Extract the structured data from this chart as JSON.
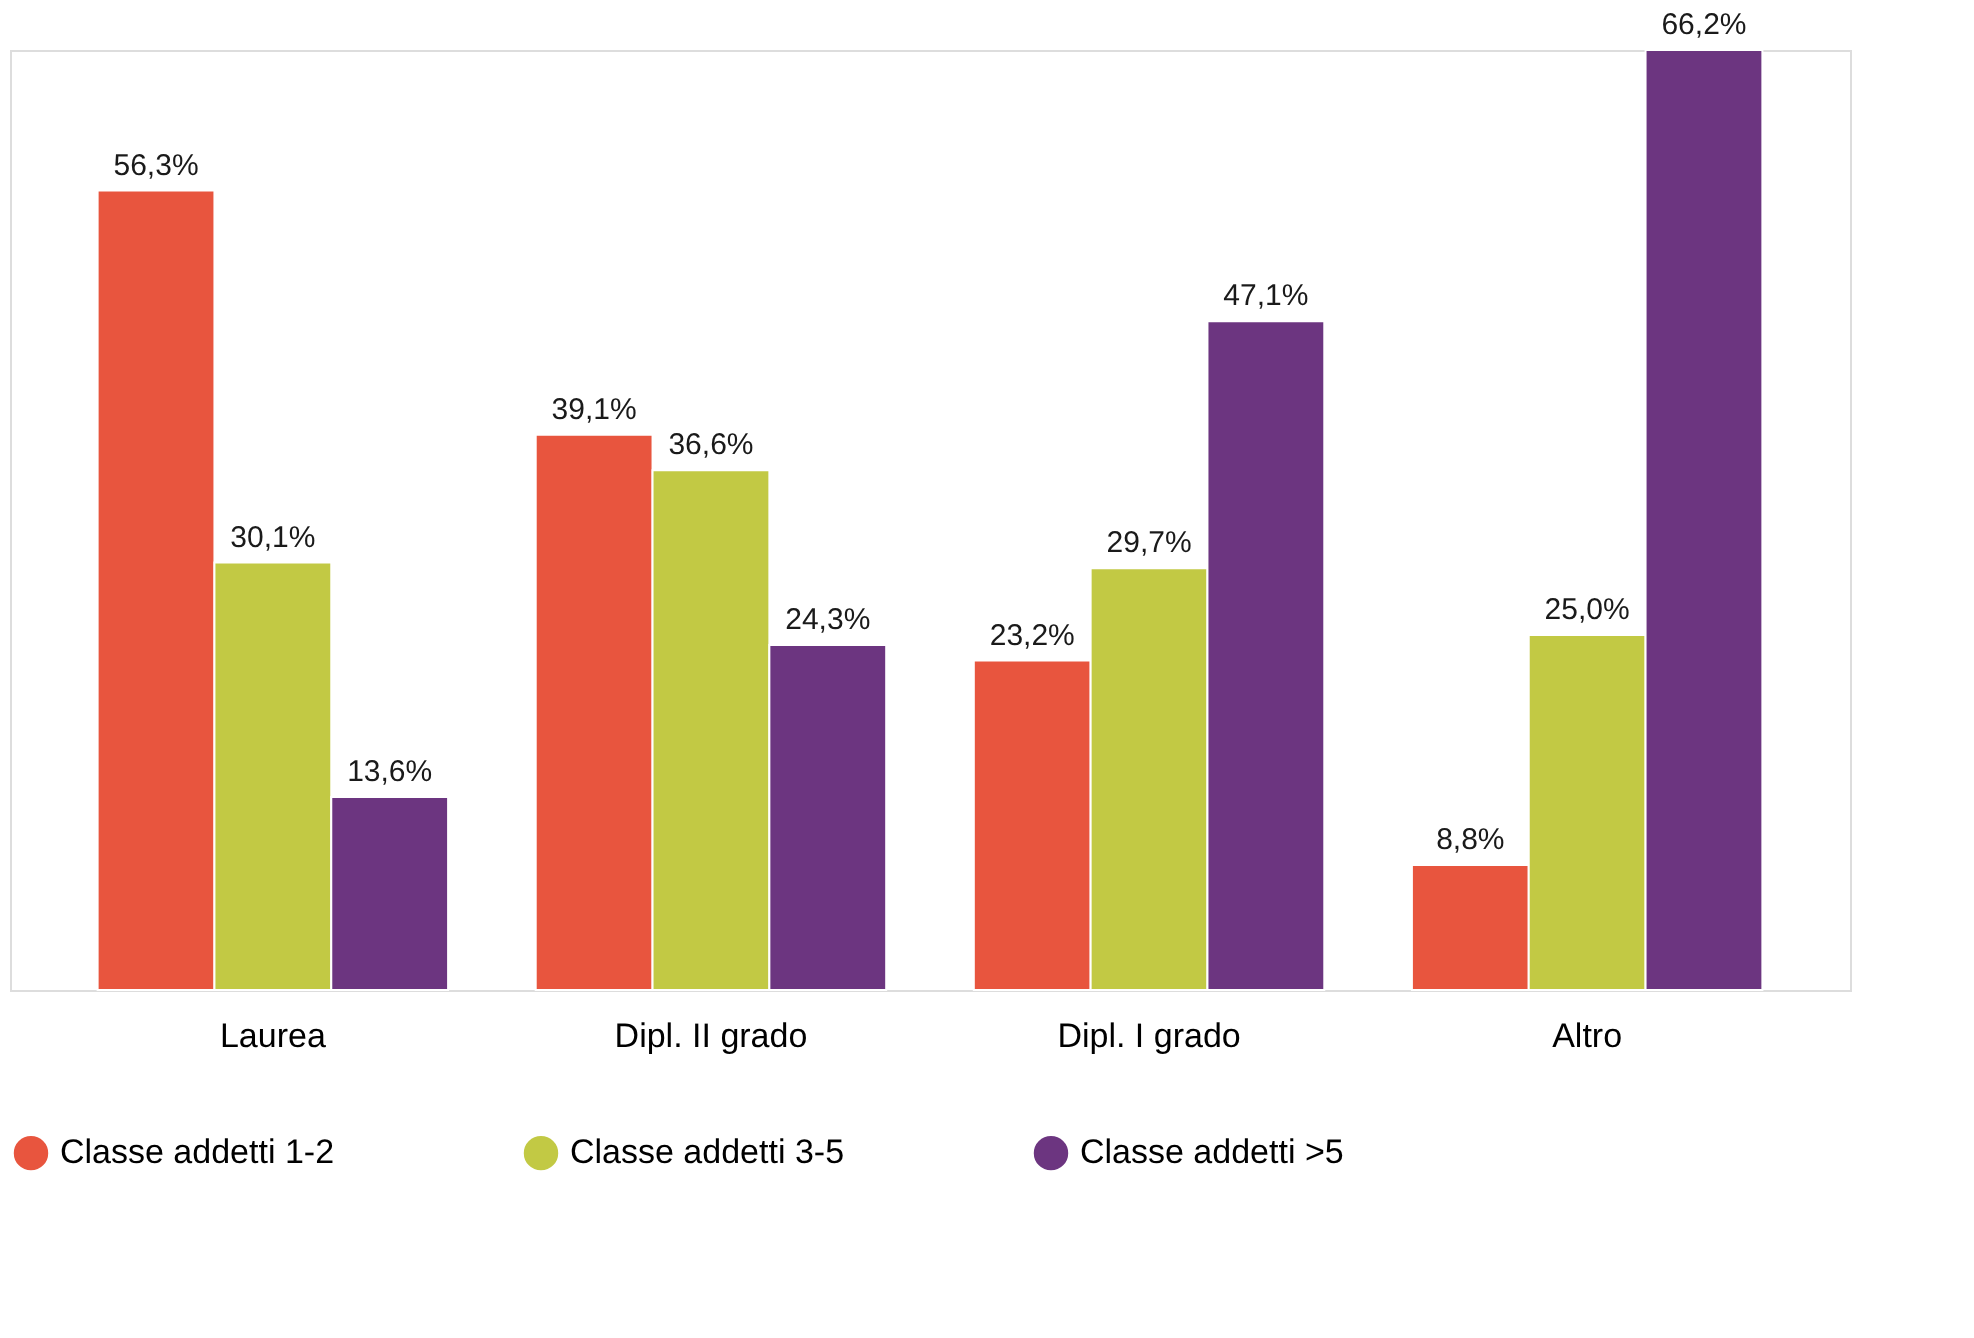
{
  "chart_data": {
    "type": "bar",
    "categories": [
      "Laurea",
      "Dipl. II grado",
      "Dipl. I grado",
      "Altro"
    ],
    "series": [
      {
        "name": "Classe addetti 1-2",
        "color": "#e8553e",
        "values": [
          56.3,
          39.1,
          23.2,
          8.8
        ],
        "value_labels": [
          "56,3%",
          "39,1%",
          "23,2%",
          "8,8%"
        ]
      },
      {
        "name": "Classe addetti 3-5",
        "color": "#c2c944",
        "values": [
          30.1,
          36.6,
          29.7,
          25.0
        ],
        "value_labels": [
          "30,1%",
          "36,6%",
          "29,7%",
          "25,0%"
        ]
      },
      {
        "name": "Classe addetti >5",
        "color": "#6c3580",
        "values": [
          13.6,
          24.3,
          47.1,
          66.2
        ],
        "value_labels": [
          "13,6%",
          "24,3%",
          "47,1%",
          "66,2%"
        ]
      }
    ],
    "legend": "bottom",
    "grid": false
  }
}
